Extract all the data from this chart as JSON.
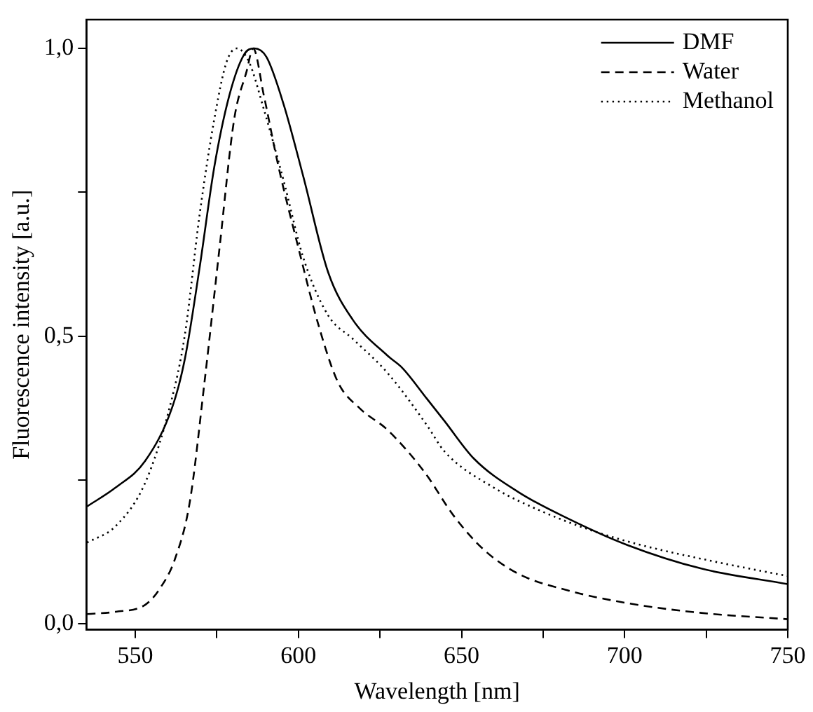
{
  "chart_data": {
    "type": "line",
    "xlabel": "Wavelength [nm]",
    "ylabel": "Fluorescence intensity [a.u.]",
    "xlim": [
      535,
      750
    ],
    "ylim": [
      -0.01,
      1.05
    ],
    "xticks": [
      550,
      {
        "value": 575,
        "label": null
      },
      600,
      {
        "value": 625,
        "label": null
      },
      650,
      {
        "value": 675,
        "label": null
      },
      700,
      {
        "value": 725,
        "label": null
      },
      750
    ],
    "yticks": [
      {
        "value": 0,
        "label": "0,0"
      },
      {
        "value": 0.25,
        "label": null
      },
      {
        "value": 0.5,
        "label": "0,5"
      },
      {
        "value": 0.75,
        "label": null
      },
      {
        "value": 1,
        "label": "1,0"
      }
    ],
    "grid": false,
    "legend": "top right",
    "marker": "none",
    "series": [
      {
        "name": "DMF",
        "color": "#000000",
        "line_style": "solid",
        "x": [
          535.2,
          544,
          553,
          561.4,
          565.2,
          569.7,
          574.2,
          578.8,
          583.3,
          586.4,
          590.2,
          595.5,
          601.5,
          609.1,
          616.7,
          627.3,
          631.8,
          639.4,
          644.7,
          653.8,
          667.4,
          682.6,
          700.8,
          723.5,
          750
        ],
        "values": [
          0.204,
          0.237,
          0.283,
          0.378,
          0.461,
          0.619,
          0.794,
          0.918,
          0.989,
          1.0,
          0.985,
          0.902,
          0.777,
          0.611,
          0.528,
          0.466,
          0.445,
          0.391,
          0.353,
          0.287,
          0.229,
          0.183,
          0.137,
          0.096,
          0.069
        ]
      },
      {
        "name": "Water",
        "color": "#000000",
        "line_style": "dashed",
        "x": [
          535.2,
          544,
          553,
          557.6,
          562.1,
          566.7,
          571.2,
          575.8,
          580.3,
          584.1,
          586.1,
          589.4,
          593.9,
          600,
          606.1,
          612.1,
          618.9,
          627.3,
          638.6,
          647.7,
          656.8,
          667.4,
          682.6,
          700.8,
          723.5,
          750
        ],
        "values": [
          0.017,
          0.021,
          0.033,
          0.062,
          0.112,
          0.212,
          0.42,
          0.653,
          0.877,
          0.96,
          1.0,
          0.918,
          0.794,
          0.653,
          0.52,
          0.42,
          0.374,
          0.337,
          0.264,
          0.187,
          0.129,
          0.087,
          0.058,
          0.036,
          0.019,
          0.008
        ]
      },
      {
        "name": "Methanol",
        "color": "#000000",
        "line_style": "dotted",
        "x": [
          535.2,
          544,
          553,
          560.6,
          565.2,
          569.7,
          574.2,
          578,
          581.1,
          584.8,
          589.4,
          595.5,
          601.5,
          609.1,
          616.7,
          627.3,
          639.4,
          644.7,
          659.8,
          674.8,
          690,
          705,
          727.7,
          750
        ],
        "values": [
          0.141,
          0.17,
          0.245,
          0.378,
          0.503,
          0.711,
          0.877,
          0.977,
          1.0,
          0.977,
          0.894,
          0.769,
          0.636,
          0.536,
          0.495,
          0.436,
          0.345,
          0.3,
          0.237,
          0.195,
          0.162,
          0.137,
          0.108,
          0.083
        ]
      }
    ]
  }
}
